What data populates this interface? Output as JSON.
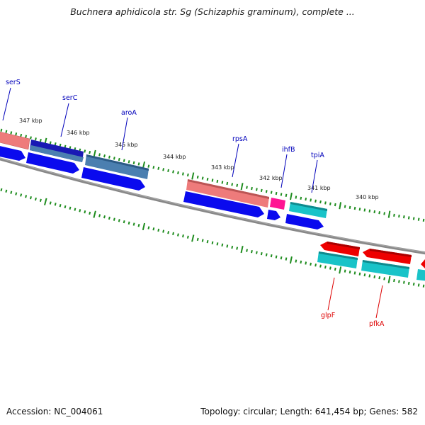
{
  "title": "Buchnera aphidicola str. Sg (Schizaphis graminum), complete ...",
  "accession": "Accession: NC_004061",
  "stats": "Topology: circular; Length: 641,454 bp; Genes: 582",
  "colors": {
    "label_plus": "#0000bb",
    "label_minus": "#dd0000",
    "backbone": "#7a7a7a",
    "tick": "#1e8c1e",
    "salmon": "#ee7b7b",
    "steelblue": "#4b7fb0",
    "darkblue": "#1919b4",
    "blue": "#0a0aee",
    "magenta": "#ff1493",
    "cyan": "#19c3c8",
    "red": "#ee0000"
  },
  "kbp_labels": [
    "347 kbp",
    "346 kbp",
    "345 kbp",
    "344 kbp",
    "343 kbp",
    "342 kbp",
    "341 kbp",
    "340 kbp"
  ],
  "gene_labels": {
    "plus": [
      "serS",
      "serC",
      "aroA",
      "rpsA",
      "ihfB",
      "tpiA"
    ],
    "minus": [
      "glpF",
      "pfkA"
    ]
  }
}
